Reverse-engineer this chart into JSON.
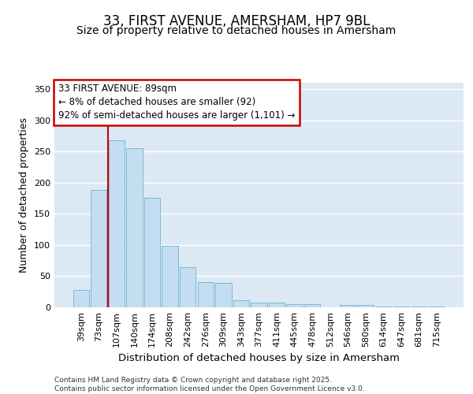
{
  "title": "33, FIRST AVENUE, AMERSHAM, HP7 9BL",
  "subtitle": "Size of property relative to detached houses in Amersham",
  "xlabel": "Distribution of detached houses by size in Amersham",
  "ylabel": "Number of detached properties",
  "categories": [
    "39sqm",
    "73sqm",
    "107sqm",
    "140sqm",
    "174sqm",
    "208sqm",
    "242sqm",
    "276sqm",
    "309sqm",
    "343sqm",
    "377sqm",
    "411sqm",
    "445sqm",
    "478sqm",
    "512sqm",
    "546sqm",
    "580sqm",
    "614sqm",
    "647sqm",
    "681sqm",
    "715sqm"
  ],
  "values": [
    28,
    188,
    268,
    255,
    175,
    99,
    65,
    41,
    39,
    11,
    7,
    7,
    5,
    5,
    0,
    4,
    4,
    1,
    1,
    1,
    1
  ],
  "bar_color": "#c5ddf0",
  "bar_edge_color": "#7ab8d9",
  "plot_bg_color": "#dce9f5",
  "figure_bg_color": "#ffffff",
  "vline_x_index": 1.5,
  "vline_color": "#cc0000",
  "annotation_text": "33 FIRST AVENUE: 89sqm\n← 8% of detached houses are smaller (92)\n92% of semi-detached houses are larger (1,101) →",
  "annotation_box_color": "#ffffff",
  "annotation_box_edge_color": "#cc0000",
  "footer_text": "Contains HM Land Registry data © Crown copyright and database right 2025.\nContains public sector information licensed under the Open Government Licence v3.0.",
  "ylim": [
    0,
    360
  ],
  "yticks": [
    0,
    50,
    100,
    150,
    200,
    250,
    300,
    350
  ],
  "title_fontsize": 12,
  "subtitle_fontsize": 10,
  "xlabel_fontsize": 9.5,
  "ylabel_fontsize": 9,
  "tick_fontsize": 8,
  "annotation_fontsize": 8.5,
  "footer_fontsize": 6.5
}
